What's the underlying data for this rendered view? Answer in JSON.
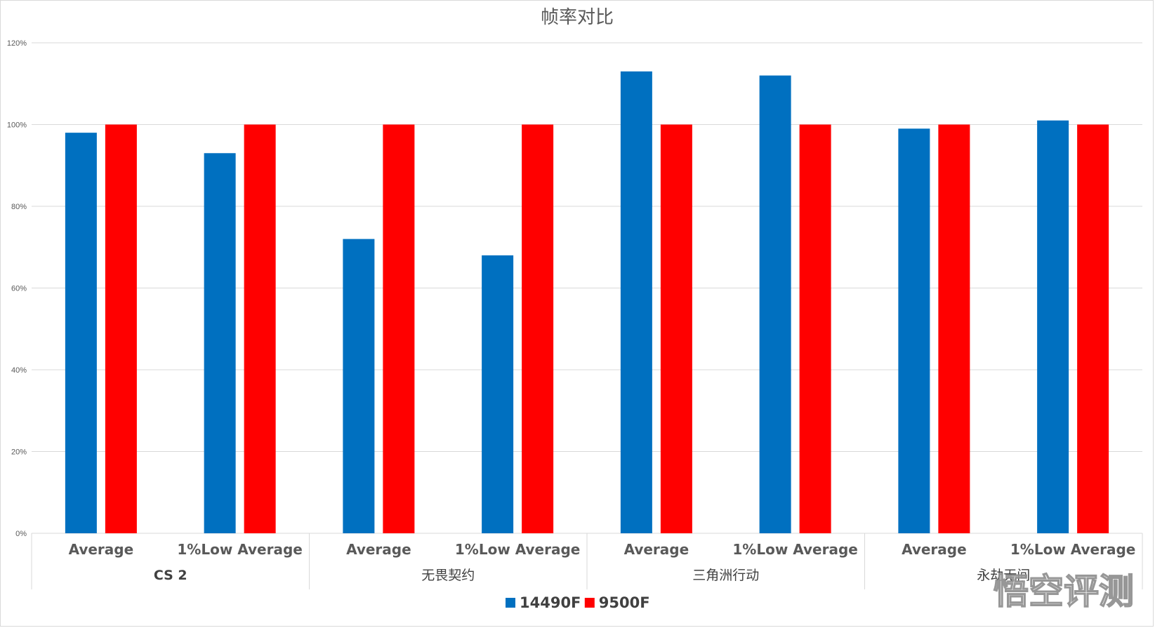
{
  "chart_data": {
    "type": "bar",
    "title": "帧率对比",
    "xlabel": "",
    "ylabel": "",
    "ylim": [
      0,
      120
    ],
    "y_ticks": [
      "0%",
      "20%",
      "40%",
      "60%",
      "80%",
      "100%",
      "120%"
    ],
    "grid": true,
    "legend_placement": "bottom",
    "groups": [
      "CS 2",
      "无畏契约",
      "三角洲行动",
      "永劫无间"
    ],
    "categories": [
      "Average",
      "1%Low Average",
      "Average",
      "1%Low Average",
      "Average",
      "1%Low Average",
      "Average",
      "1%Low Average"
    ],
    "series": [
      {
        "name": "14490F",
        "color": "#0070C0",
        "values": [
          98,
          93,
          72,
          68,
          113,
          112,
          99,
          101
        ]
      },
      {
        "name": "9500F",
        "color": "#FF0000",
        "values": [
          100,
          100,
          100,
          100,
          100,
          100,
          100,
          100
        ]
      }
    ],
    "unit_suffix": "%"
  },
  "watermark": {
    "text": "悟空评测"
  }
}
